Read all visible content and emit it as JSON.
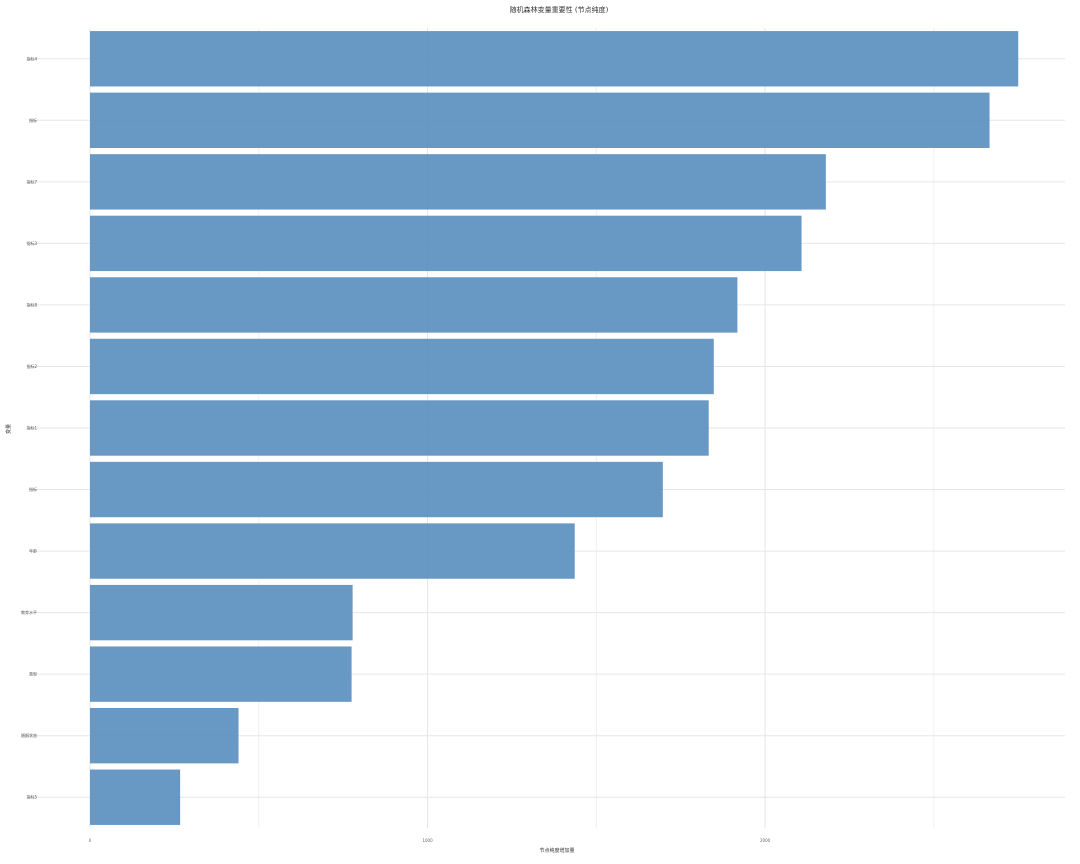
{
  "chart_data": {
    "type": "bar",
    "orientation": "horizontal",
    "title": "随机森林变量重要性 (节点纯度)",
    "xlabel": "节点纯度增加量",
    "ylabel": "变量",
    "categories": [
      "指标4",
      "指标",
      "指标7",
      "指标3",
      "指标8",
      "指标2",
      "指标1",
      "指标",
      "年龄",
      "教育水平",
      "类型",
      "婚姻状态",
      "指标5"
    ],
    "values": [
      2750,
      2665,
      2180,
      2108,
      1918,
      1848,
      1833,
      1697,
      1436,
      778,
      775,
      440,
      267
    ],
    "xlim": [
      0,
      2850
    ],
    "xticks": [
      0,
      1000,
      2000
    ],
    "xtick_labels": [
      "0",
      "1000",
      "2000"
    ],
    "grid": true,
    "bar_color": "#5b8fbf"
  }
}
